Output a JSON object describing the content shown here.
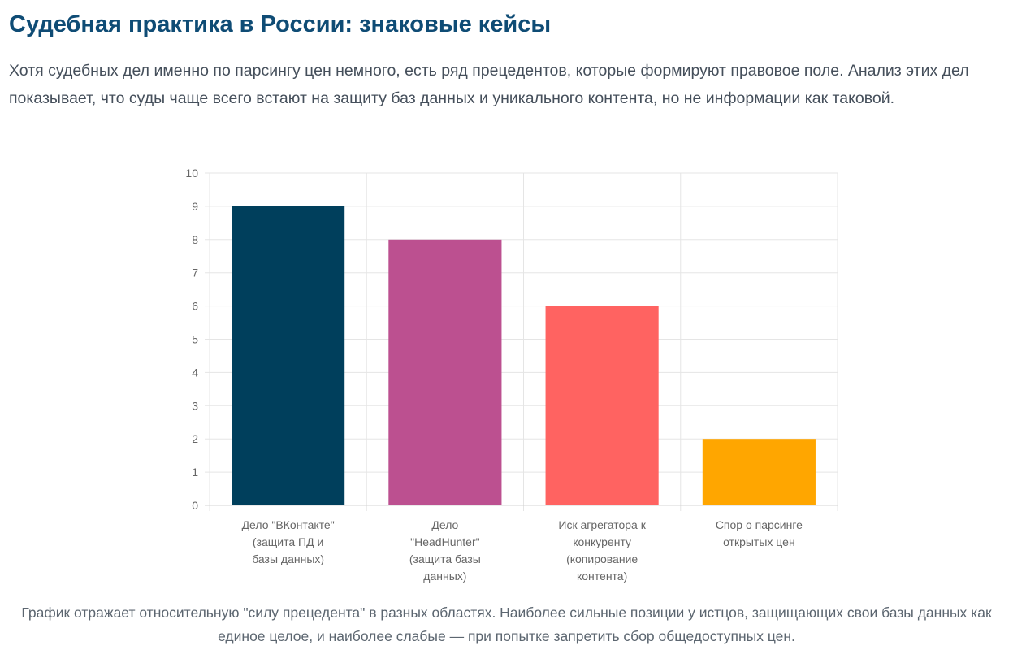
{
  "header": {
    "title": "Судебная практика в России: знаковые кейсы"
  },
  "intro": {
    "text": "Хотя судебных дел именно по парсингу цен немного, есть ряд прецедентов, которые формируют правовое поле. Анализ этих дел показывает, что суды чаще всего встают на защиту баз данных и уникального контента, но не информации как таковой."
  },
  "chart_data": {
    "type": "bar",
    "title": "",
    "xlabel": "",
    "ylabel": "",
    "ylim": [
      0,
      10
    ],
    "yticks": [
      "0",
      "1",
      "2",
      "3",
      "4",
      "5",
      "6",
      "7",
      "8",
      "9",
      "10"
    ],
    "grid": true,
    "legend": "none",
    "categories": [
      [
        "Дело \"ВКонтакте\"",
        "(защита ПД и",
        "базы данных)"
      ],
      [
        "Дело",
        "\"HeadHunter\"",
        "(защита базы",
        "данных)"
      ],
      [
        "Иск агрегатора к",
        "конкуренту",
        "(копирование",
        "контента)"
      ],
      [
        "Спор о парсинге",
        "открытых цен"
      ]
    ],
    "values": [
      9,
      8,
      6,
      2
    ],
    "colors": [
      "#003f5c",
      "#bc5090",
      "#ff6361",
      "#ffa600"
    ]
  },
  "caption": {
    "text": "График отражает относительную \"силу прецедента\" в разных областях. Наиболее сильные позиции у истцов, защищающих свои базы данных как единое целое, и наиболее слабые — при попытке запретить сбор общедоступных цен."
  }
}
